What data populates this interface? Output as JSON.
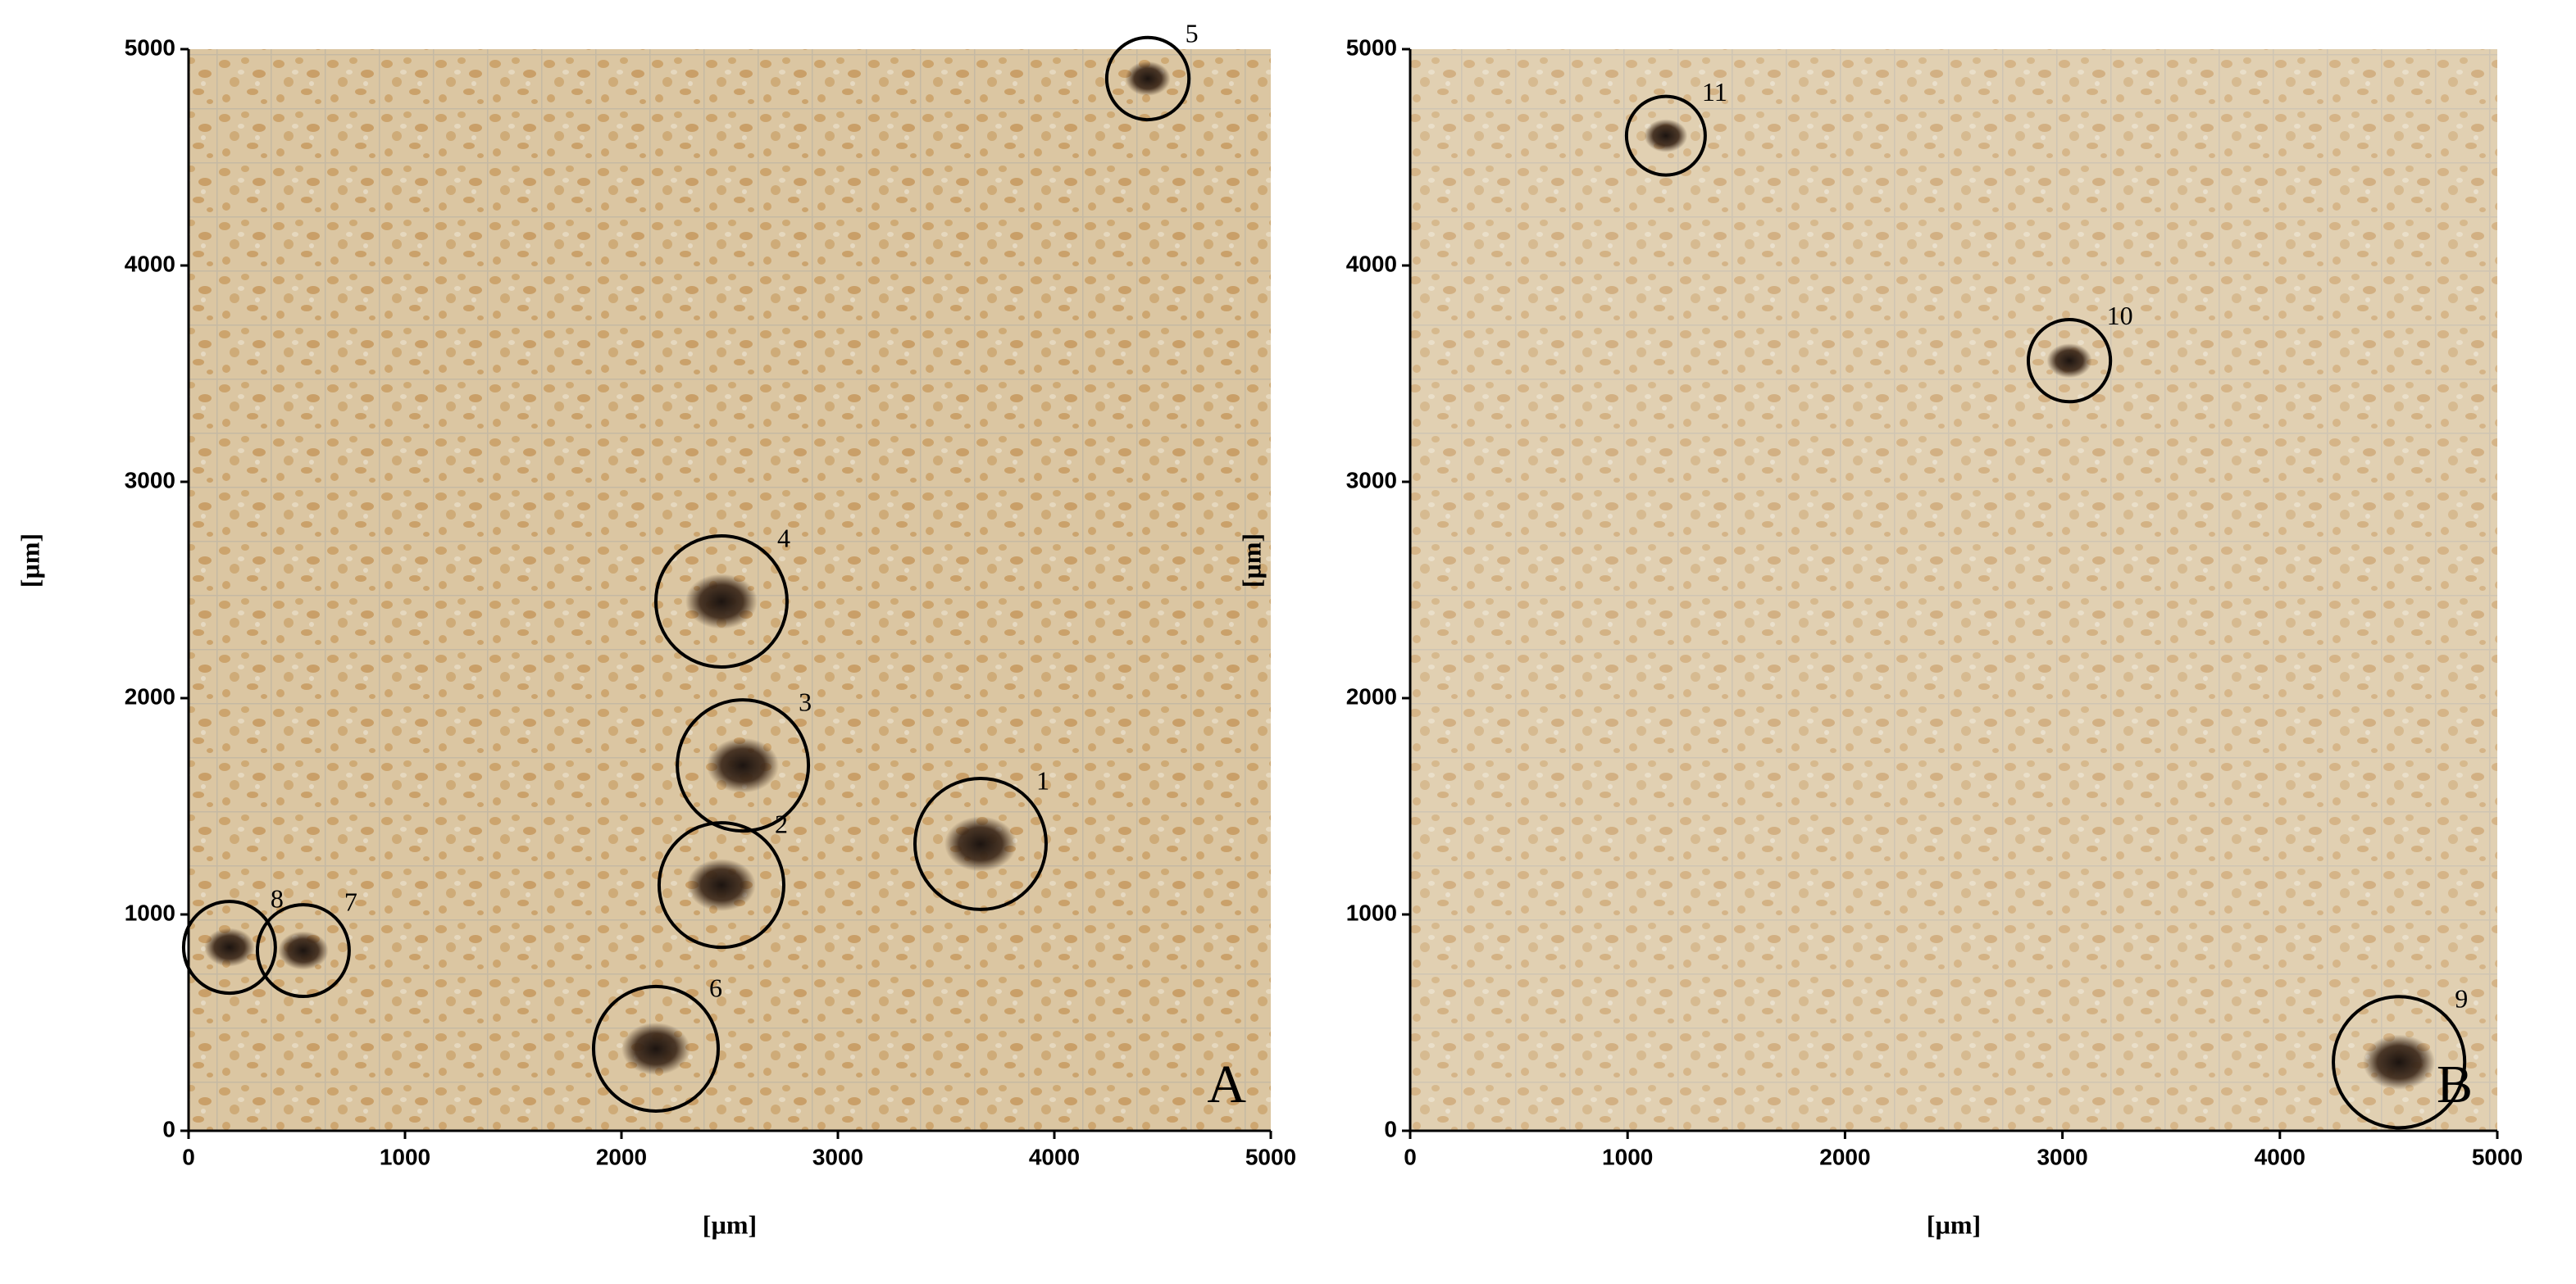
{
  "chart_data": [
    {
      "type": "scatter",
      "panel": "A",
      "xlabel": "[µm]",
      "ylabel": "[µm]",
      "xlim": [
        0,
        5000
      ],
      "ylim": [
        0,
        5000
      ],
      "xticks": [
        0,
        1000,
        2000,
        3000,
        4000,
        5000
      ],
      "yticks": [
        0,
        1000,
        2000,
        3000,
        4000,
        5000
      ],
      "labels": [
        "1",
        "2",
        "3",
        "4",
        "5",
        "6",
        "7",
        "8"
      ],
      "x": [
        3659,
        2462,
        2561,
        2462,
        4432,
        2159,
        530,
        189
      ],
      "y": [
        1326,
        1136,
        1689,
        2447,
        4864,
        379,
        833,
        848
      ],
      "sizes": [
        303,
        288,
        303,
        303,
        190,
        288,
        212,
        212
      ]
    },
    {
      "type": "scatter",
      "panel": "B",
      "xlabel": "[µm]",
      "ylabel": "[µm]",
      "xlim": [
        0,
        5000
      ],
      "ylim": [
        0,
        5000
      ],
      "xticks": [
        0,
        1000,
        2000,
        3000,
        4000,
        5000
      ],
      "yticks": [
        0,
        1000,
        2000,
        3000,
        4000,
        5000
      ],
      "labels": [
        "9",
        "10",
        "11"
      ],
      "x": [
        4548,
        3032,
        1176
      ],
      "y": [
        317,
        3560,
        4600
      ],
      "sizes": [
        302,
        189,
        181
      ]
    }
  ]
}
